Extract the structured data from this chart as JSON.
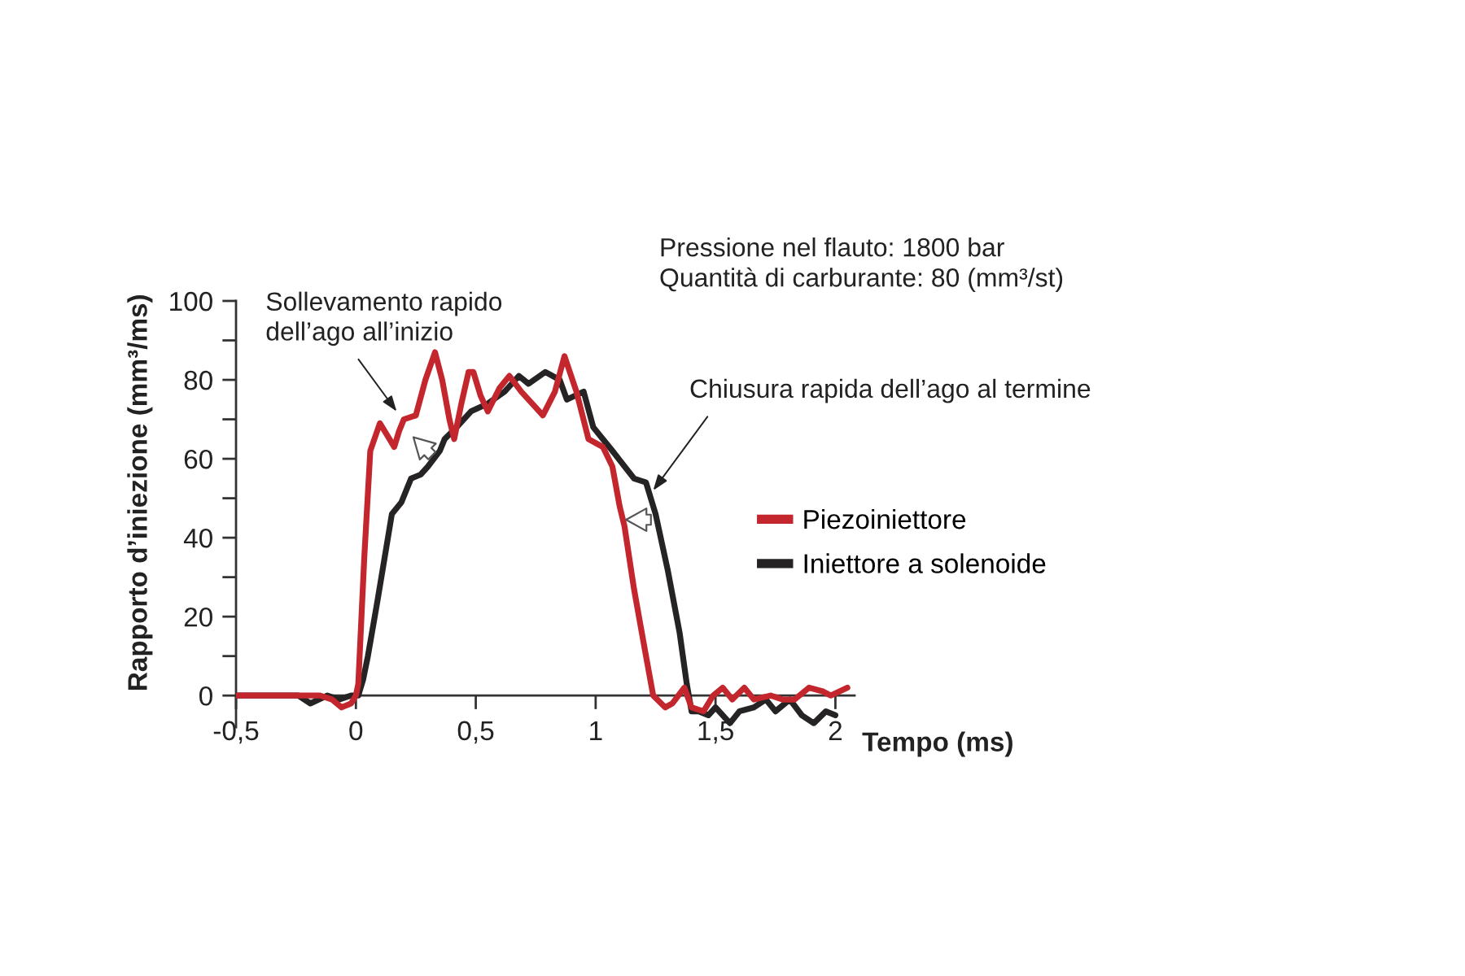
{
  "chart_data": {
    "type": "line",
    "xlabel": "Tempo (ms)",
    "ylabel": "Rapporto d’iniezione (mm³/ms)",
    "xlim": [
      -0.5,
      2.08
    ],
    "ylim": [
      -8,
      100
    ],
    "xticks": [
      {
        "value": -0.5,
        "label": "-0,5"
      },
      0,
      {
        "value": 0.5,
        "label": "0,5"
      },
      1,
      {
        "value": 1.5,
        "label": "1,5"
      },
      2
    ],
    "yticks": [
      0,
      {
        "value": 10,
        "label": null
      },
      20,
      {
        "value": 30,
        "label": null
      },
      40,
      {
        "value": 50,
        "label": null
      },
      60,
      {
        "value": 70,
        "label": null
      },
      80,
      {
        "value": 90,
        "label": null
      },
      100
    ],
    "legend": "right",
    "line_style": "solid",
    "series": [
      {
        "name": "Piezoiniettore",
        "color": "#c4262e",
        "x": [
          -0.5,
          -0.15,
          -0.1,
          -0.06,
          -0.02,
          0.0,
          0.01,
          0.035,
          0.06,
          0.1,
          0.13,
          0.16,
          0.18,
          0.2,
          0.25,
          0.29,
          0.33,
          0.36,
          0.39,
          0.41,
          0.44,
          0.47,
          0.49,
          0.52,
          0.55,
          0.6,
          0.64,
          0.69,
          0.78,
          0.83,
          0.87,
          0.92,
          0.97,
          1.03,
          1.07,
          1.1,
          1.12,
          1.16,
          1.21,
          1.24,
          1.29,
          1.32,
          1.37,
          1.4,
          1.45,
          1.49,
          1.53,
          1.57,
          1.62,
          1.66,
          1.73,
          1.78,
          1.83,
          1.89,
          1.95,
          1.98,
          2.05
        ],
        "values": [
          0,
          0,
          -1,
          -3,
          -2,
          0,
          3,
          35,
          62,
          69,
          66,
          63,
          67,
          70,
          71,
          80,
          87,
          80,
          70,
          65,
          74,
          82,
          82,
          76,
          72,
          78,
          81,
          77,
          71,
          77,
          86,
          77,
          65,
          63,
          58,
          48,
          43,
          27,
          10,
          0,
          -3,
          -2,
          2,
          -3,
          -4,
          0,
          2,
          -1,
          2,
          -1,
          0,
          -1,
          -1,
          2,
          1,
          0,
          2
        ]
      },
      {
        "name": "Iniettore a solenoide",
        "color": "#262324",
        "x": [
          -0.5,
          -0.24,
          -0.19,
          -0.12,
          -0.07,
          -0.02,
          0.01,
          0.03,
          0.05,
          0.09,
          0.12,
          0.15,
          0.19,
          0.23,
          0.27,
          0.3,
          0.35,
          0.37,
          0.42,
          0.48,
          0.55,
          0.62,
          0.68,
          0.72,
          0.79,
          0.85,
          0.88,
          0.95,
          0.99,
          1.07,
          1.16,
          1.21,
          1.25,
          1.3,
          1.35,
          1.38,
          1.4,
          1.43,
          1.47,
          1.5,
          1.56,
          1.6,
          1.66,
          1.71,
          1.75,
          1.81,
          1.86,
          1.91,
          1.96,
          2.0
        ],
        "values": [
          0,
          0,
          -2,
          0,
          -1,
          0,
          0,
          4,
          10,
          24,
          35,
          46,
          49,
          55,
          56,
          58,
          62,
          65,
          68,
          72,
          74,
          77,
          81,
          79,
          82,
          80,
          75,
          77,
          68,
          62,
          55,
          54,
          46,
          32,
          16,
          3,
          -4,
          -4,
          -5,
          -3,
          -7,
          -4,
          -3,
          -1,
          -4,
          -1,
          -5,
          -7,
          -4,
          -5
        ]
      }
    ],
    "annotations": [
      {
        "text": "Sollevamento rapido\ndell’ago all’inizio",
        "x": 0.17,
        "y": 72
      },
      {
        "text": "Chiusura rapida dell’ago al termine",
        "x": 1.24,
        "y": 52
      },
      "Pressione nel flauto: 1800 bar\nQuantità di carburante: 80 (mm³/st)"
    ]
  }
}
